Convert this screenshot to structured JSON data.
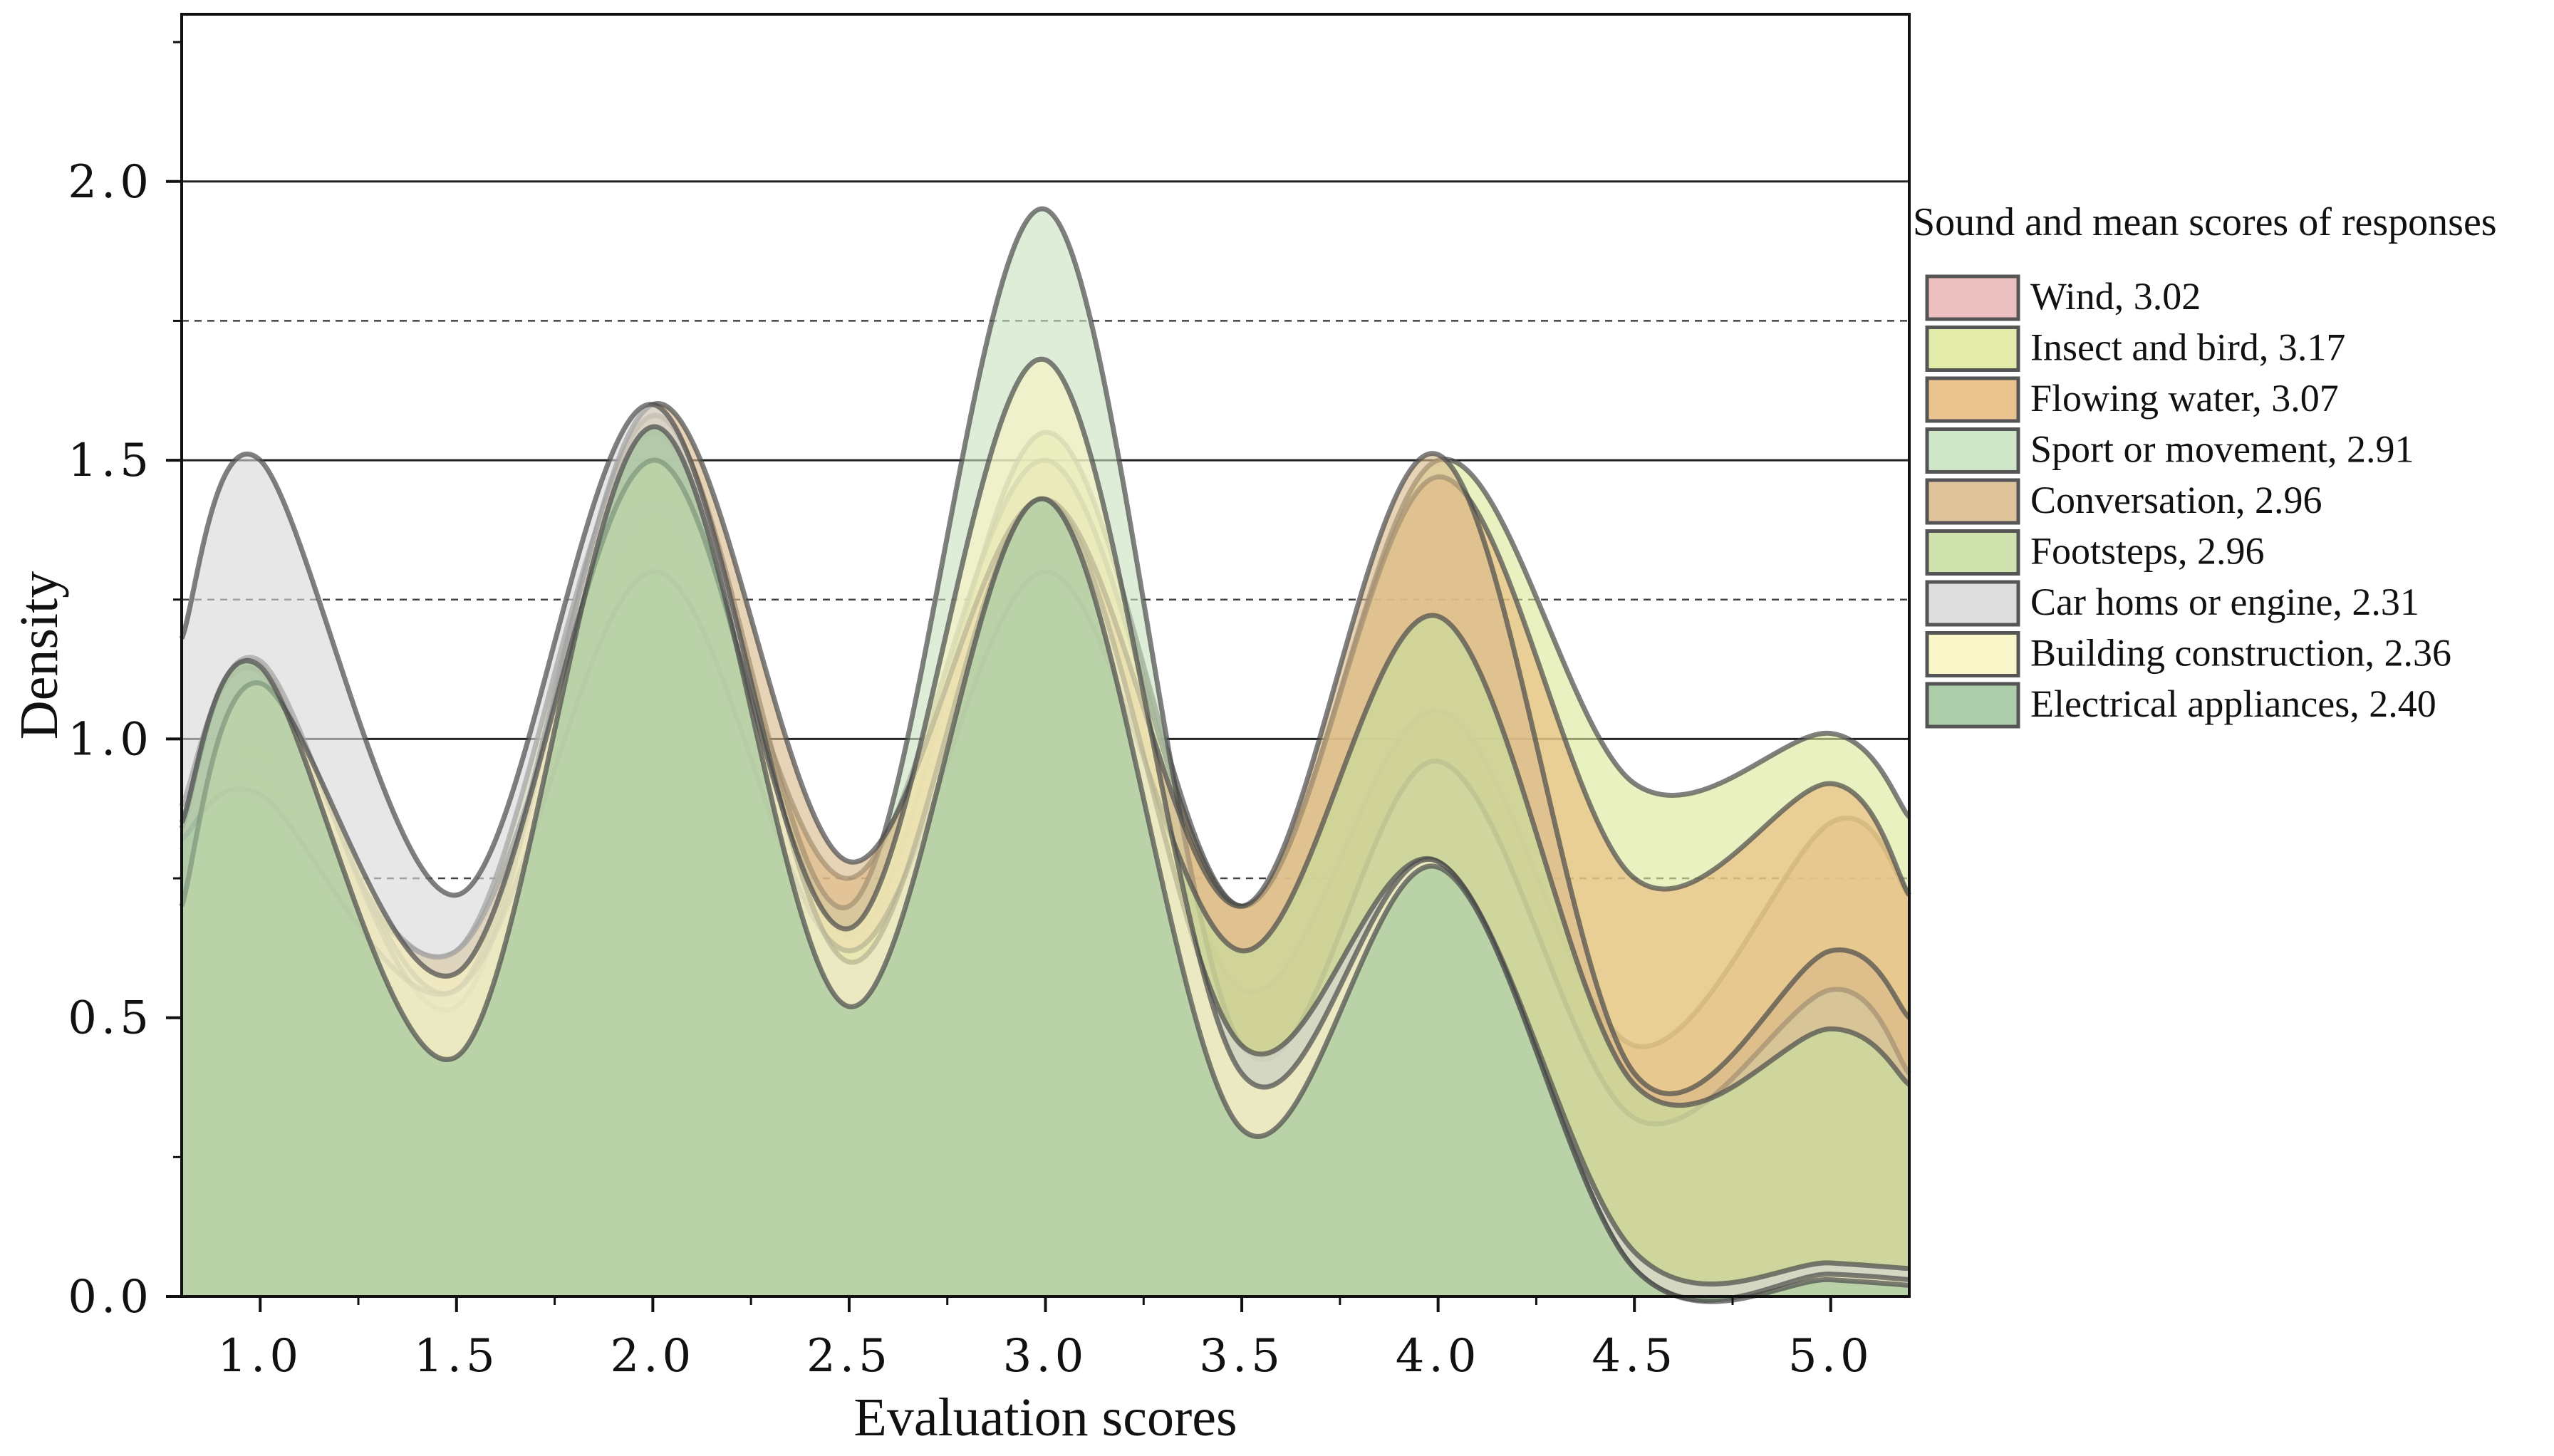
{
  "chart_data": {
    "type": "area",
    "subtype": "density-ridge-overlay",
    "xlabel": "Evaluation scores",
    "ylabel": "Density",
    "xlim": [
      0.8,
      5.2
    ],
    "ylim": [
      0.0,
      2.3
    ],
    "x_ticks": [
      1.0,
      1.5,
      2.0,
      2.5,
      3.0,
      3.5,
      4.0,
      4.5,
      5.0
    ],
    "x_tick_labels": [
      "1.0",
      "1.5",
      "2.0",
      "2.5",
      "3.0",
      "3.5",
      "4.0",
      "4.5",
      "5.0"
    ],
    "y_ticks": [
      0.0,
      0.5,
      1.0,
      1.5,
      2.0
    ],
    "y_tick_labels": [
      "0.0",
      "0.5",
      "1.0",
      "1.5",
      "2.0"
    ],
    "major_gridlines_y": [
      1.0,
      1.5,
      2.0
    ],
    "minor_gridlines_y": [
      0.75,
      1.25,
      1.75
    ],
    "grid": true,
    "legend": {
      "title": "Sound and mean scores of responses",
      "placement": "right"
    },
    "x": [
      0.8,
      1.0,
      1.5,
      2.0,
      2.5,
      3.0,
      3.5,
      4.0,
      4.5,
      5.0,
      5.2
    ],
    "series": [
      {
        "name": "Wind, 3.02",
        "color": "#e8b4b4",
        "values": [
          0.42,
          0.55,
          0.45,
          1.38,
          0.58,
          1.42,
          0.55,
          1.05,
          0.45,
          0.85,
          0.72
        ]
      },
      {
        "name": "Insect and bird, 3.17",
        "color": "#dde89a",
        "values": [
          0.75,
          1.0,
          0.62,
          1.55,
          0.65,
          1.55,
          0.7,
          1.5,
          0.92,
          1.01,
          0.86
        ]
      },
      {
        "name": "Flowing water, 3.07",
        "color": "#e8b97a",
        "values": [
          0.8,
          0.95,
          0.62,
          1.42,
          0.75,
          1.5,
          0.7,
          1.47,
          0.75,
          0.92,
          0.72
        ]
      },
      {
        "name": "Sport or movement, 2.91",
        "color": "#c8e2c0",
        "values": [
          0.88,
          1.12,
          0.55,
          1.58,
          0.7,
          1.95,
          0.45,
          0.96,
          0.32,
          0.55,
          0.4
        ]
      },
      {
        "name": "Conversation, 2.96",
        "color": "#d9b98a",
        "values": [
          0.84,
          1.14,
          0.52,
          1.6,
          0.78,
          1.43,
          0.7,
          1.51,
          0.4,
          0.62,
          0.5
        ]
      },
      {
        "name": "Footsteps, 2.96",
        "color": "#c8dea0",
        "values": [
          0.82,
          0.9,
          0.55,
          1.3,
          0.62,
          1.3,
          0.62,
          1.22,
          0.38,
          0.48,
          0.38
        ]
      },
      {
        "name": "Car homs or engine, 2.31",
        "color": "#d8d8d8",
        "values": [
          1.18,
          1.5,
          0.72,
          1.6,
          0.6,
          1.43,
          0.45,
          0.78,
          0.08,
          0.06,
          0.05
        ]
      },
      {
        "name": "Building construction, 2.36",
        "color": "#f8f4c0",
        "values": [
          0.7,
          1.1,
          0.58,
          1.5,
          0.66,
          1.68,
          0.4,
          0.78,
          0.05,
          0.04,
          0.03
        ]
      },
      {
        "name": "Electrical appliances, 2.40",
        "color": "#9cc49a",
        "values": [
          0.85,
          1.13,
          0.43,
          1.56,
          0.52,
          1.43,
          0.3,
          0.77,
          0.05,
          0.03,
          0.02
        ]
      }
    ]
  }
}
